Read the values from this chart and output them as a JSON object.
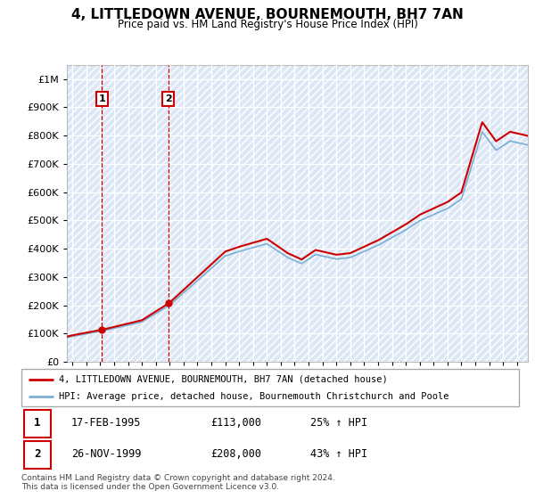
{
  "title": "4, LITTLEDOWN AVENUE, BOURNEMOUTH, BH7 7AN",
  "subtitle": "Price paid vs. HM Land Registry's House Price Index (HPI)",
  "transaction_labels": [
    {
      "num": "1",
      "date": "17-FEB-1995",
      "price": "£113,000",
      "change": "25% ↑ HPI"
    },
    {
      "num": "2",
      "date": "26-NOV-1999",
      "price": "£208,000",
      "change": "43% ↑ HPI"
    }
  ],
  "legend_line1": "4, LITTLEDOWN AVENUE, BOURNEMOUTH, BH7 7AN (detached house)",
  "legend_line2": "HPI: Average price, detached house, Bournemouth Christchurch and Poole",
  "footer": "Contains HM Land Registry data © Crown copyright and database right 2024.\nThis data is licensed under the Open Government Licence v3.0.",
  "price_color": "#cc0000",
  "hpi_color": "#7bafd4",
  "ylim": [
    0,
    1050000
  ],
  "xlim_start": 1992.6,
  "xlim_end": 2025.8,
  "t1_year": 1995.12,
  "t1_price": 113000,
  "t2_year": 1999.9,
  "t2_price": 208000
}
